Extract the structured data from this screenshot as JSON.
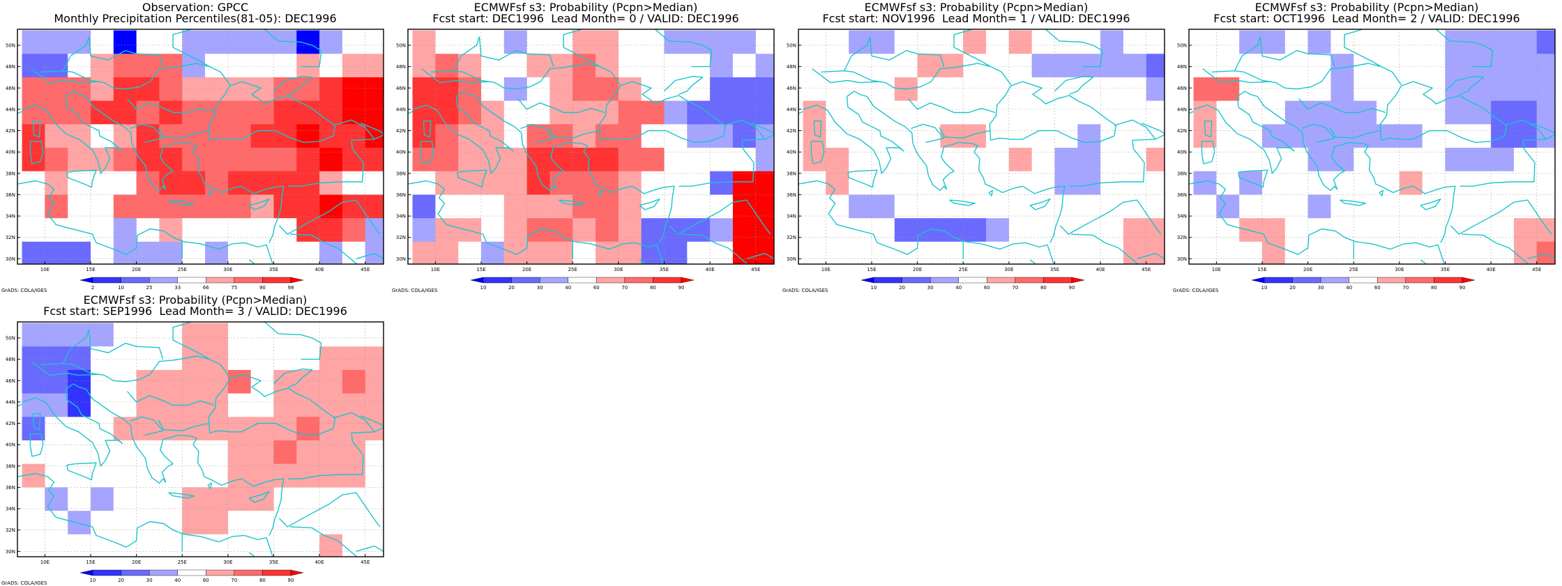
{
  "credit": "GrADS: COLA/IGES",
  "map": {
    "lat_ticks": [
      "30N",
      "32N",
      "34N",
      "36N",
      "38N",
      "40N",
      "42N",
      "44N",
      "46N",
      "48N",
      "50N"
    ],
    "lon_ticks": [
      "10E",
      "15E",
      "20E",
      "25E",
      "30E",
      "35E",
      "40E",
      "45E"
    ],
    "coast_color": "#19c5cc"
  },
  "scales": {
    "obs": {
      "labels": [
        "2",
        "10",
        "25",
        "33",
        "66",
        "75",
        "90",
        "98"
      ],
      "colors": [
        "#0000ff",
        "#3333ff",
        "#6a6aff",
        "#a5a5ff",
        "#ffffff",
        "#ffa5a5",
        "#ff6a6a",
        "#ff3333",
        "#ff0000"
      ]
    },
    "prob": {
      "labels": [
        "10",
        "20",
        "30",
        "40",
        "60",
        "70",
        "80",
        "90"
      ],
      "colors": [
        "#0000ff",
        "#3333ff",
        "#6a6aff",
        "#a5a5ff",
        "#ffffff",
        "#ffa5a5",
        "#ff6a6a",
        "#ff3333",
        "#ff0000"
      ]
    }
  },
  "panels": [
    {
      "title1": "Observation: GPCC",
      "title2": "Monthly Precipitation Percentiles(81-05): DEC1996",
      "scale": "obs",
      "grid": [
        "3334044333330344",
        "2245666344445455",
        "6665776555566788",
        "6667767666677788",
        "7554576666778778",
        "7655677666667877",
        "4544467767777544",
        "4644666666577877",
        "4444345444447763",
        "2224333434444343"
      ]
    },
    {
      "title1": "ECMWFsf s3: Probability (Pcpn>Median)",
      "title2": "Fcst start: DEC1996  Lead Month= 0 / VALID: DEC1996",
      "scale": "prob",
      "grid": [
        "5444344554433334",
        "5654455654444343",
        "7764345665444222",
        "7765445556632222",
        "7655466566443323",
        "6655577776644443",
        "4555576665444288",
        "2444555665444488",
        "3554566565222388",
        "5543555455224488"
      ]
    },
    {
      "title1": "ECMWFsf s3: Probability (Pcpn>Median)",
      "title2": "Fcst start: NOV1996  Lead Month= 1 / VALID: DEC1996",
      "scale": "prob",
      "grid": [
        "4433444545444344",
        "4444455444333332",
        "4444544444444443",
        "5444444444444444",
        "5444445544443444",
        "5544444445433445",
        "4544444444433444",
        "4433444444444444",
        "4444222234444455",
        "4444444444444455"
      ]
    },
    {
      "title1": "ECMWFsf s3: Probability (Pcpn>Median)",
      "title2": "Fcst start: OCT1996  Lead Month= 2 / VALID: DEC1996",
      "scale": "prob",
      "grid": [
        "4433434444433332",
        "4444443444433333",
        "6644443444433333",
        "5444333344433223",
        "5443333333444223",
        "4444433444433344",
        "3434444445444444",
        "4344434444444444",
        "4455444444444455",
        "4445444444444456"
      ]
    },
    {
      "title1": "ECMWFsf s3: Probability (Pcpn>Median)",
      "title2": "Fcst start: SEP1996  Lead Month= 3 / VALID: DEC1996",
      "scale": "prob",
      "grid": [
        "3333444554444444",
        "2224444554444555",
        "2214455556455565",
        "3314455554455555",
        "2444555555556555",
        "4444444445565554",
        "5444444445555554",
        "4343444555544444",
        "4434444554444444",
        "4444444444444544"
      ]
    }
  ]
}
